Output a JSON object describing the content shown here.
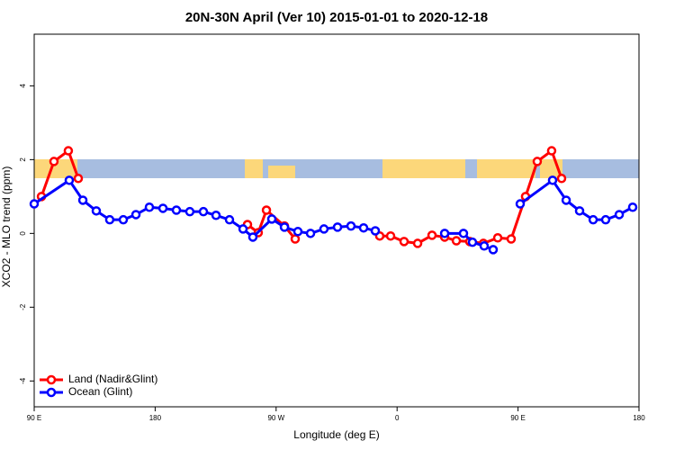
{
  "chart_data": {
    "type": "line",
    "title": "20N-30N April (Ver 10)   2015-01-01 to 2020-12-18",
    "xlabel": "Longitude (deg E)",
    "ylabel": "XCO2 - MLO trend (ppm)",
    "xlim": [
      90,
      540
    ],
    "ylim": [
      -4.7,
      5.4
    ],
    "xticks": [
      {
        "value": 90,
        "label": "90 E"
      },
      180,
      {
        "value": 270,
        "label": "90 W"
      },
      {
        "value": 360,
        "label": "0"
      },
      {
        "value": 450,
        "label": "90 E"
      },
      {
        "value": 540,
        "label": "180"
      }
    ],
    "yticks": [
      -4,
      -2,
      0,
      2,
      4
    ],
    "legend": "bottom-left",
    "series": [
      {
        "name": "Land (Nadir&Glint)",
        "color": "#ff0000",
        "x": [
          95.4,
          104.7,
          115.4,
          122.8,
          null,
          248.7,
          256.7,
          262.8,
          276.2,
          284.2,
          null,
          347.1,
          355.2,
          365.2,
          375.3,
          386,
          395.4,
          404.1,
          414.1,
          424.2,
          434.9,
          444.9,
          455.6,
          464.3,
          475,
          482.4
        ],
        "values": [
          1.0,
          1.95,
          2.24,
          1.49,
          null,
          0.24,
          0.02,
          0.63,
          0.2,
          -0.15,
          null,
          -0.07,
          -0.07,
          -0.22,
          -0.27,
          -0.05,
          -0.1,
          -0.2,
          -0.22,
          -0.27,
          -0.12,
          -0.15,
          1.0,
          1.95,
          2.24,
          1.49
        ]
      },
      {
        "name": "Ocean (Glint)",
        "color": "#0000ff",
        "x": [
          90,
          116.1,
          126.2,
          136.2,
          146.2,
          156.3,
          165.7,
          175.7,
          185.8,
          195.8,
          205.8,
          215.9,
          225.3,
          235.3,
          245.4,
          252.7,
          266.8,
          276.2,
          286.2,
          295.6,
          305.6,
          315.7,
          325.7,
          335.1,
          343.8,
          null,
          395.4,
          409.4,
          416.1,
          424.8,
          431.5,
          null,
          451.6,
          475.7,
          485.8,
          495.8,
          505.9,
          515.2,
          525.3,
          535.3
        ],
        "values": [
          0.8,
          1.44,
          0.9,
          0.61,
          0.37,
          0.37,
          0.51,
          0.71,
          0.68,
          0.63,
          0.59,
          0.59,
          0.49,
          0.37,
          0.12,
          -0.1,
          0.39,
          0.17,
          0.05,
          0,
          0.12,
          0.17,
          0.2,
          0.15,
          0.07,
          null,
          0,
          0,
          -0.24,
          -0.34,
          -0.44,
          null,
          0.8,
          1.44,
          0.9,
          0.61,
          0.37,
          0.37,
          0.51,
          0.71
        ]
      }
    ]
  }
}
